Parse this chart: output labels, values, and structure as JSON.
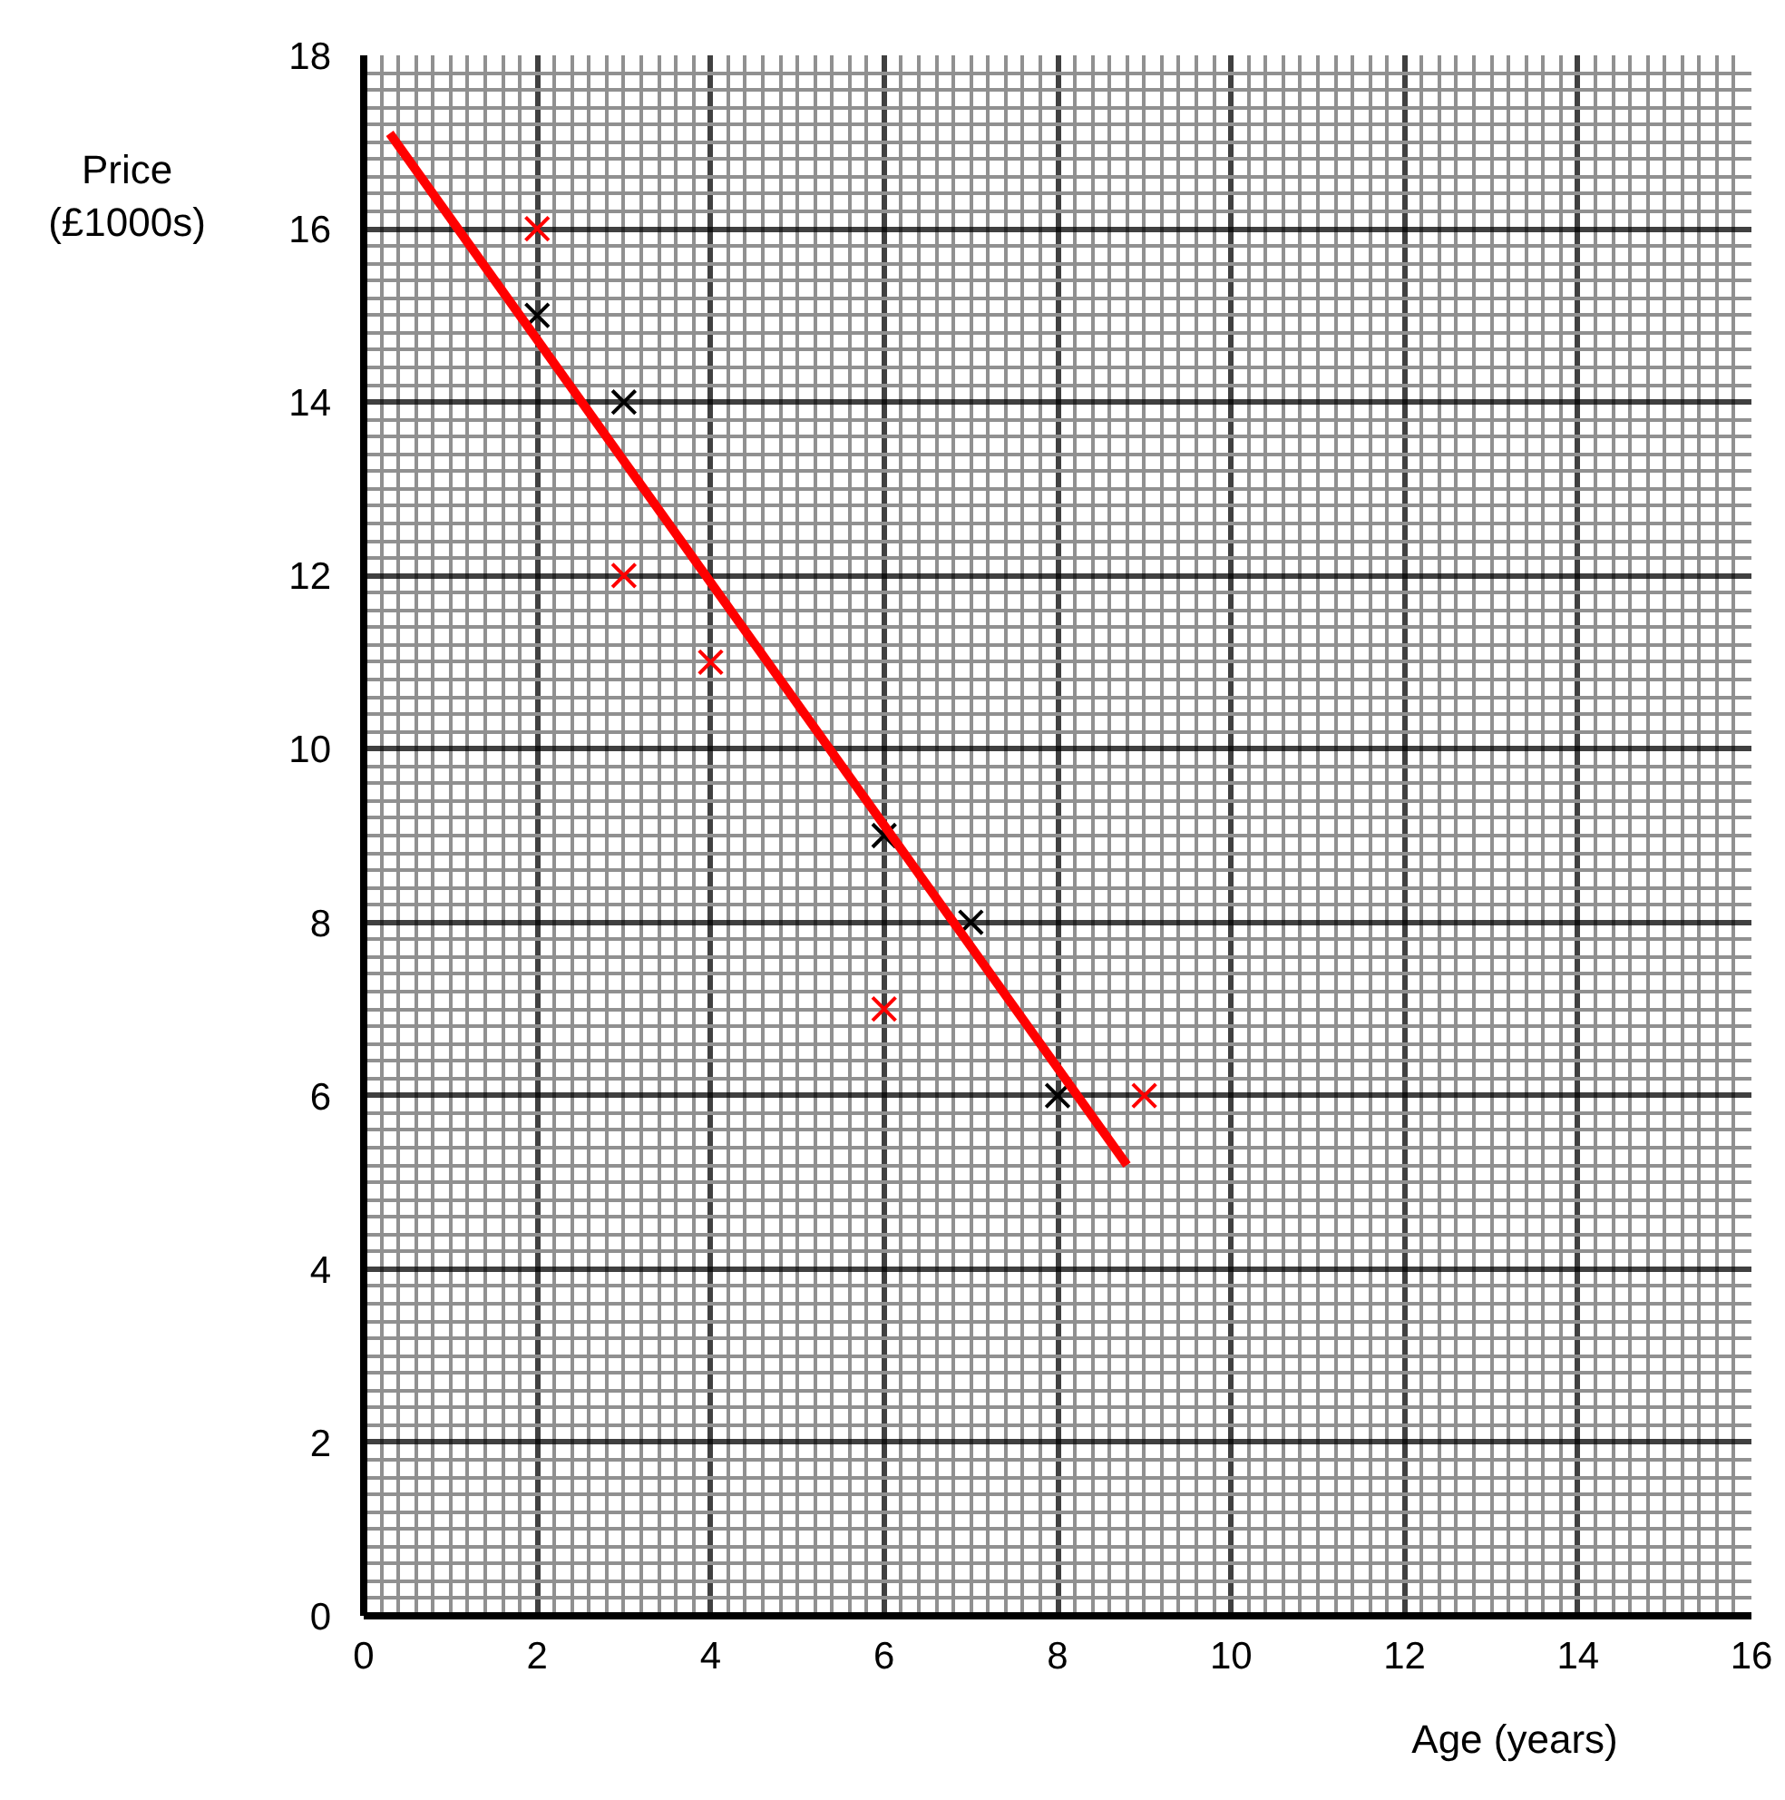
{
  "chart_data": {
    "type": "scatter",
    "xlabel": "Age (years)",
    "ylabel": "Price\n(£1000s)",
    "xlim": [
      0,
      16
    ],
    "ylim": [
      0,
      18
    ],
    "xticks": [
      0,
      2,
      4,
      6,
      8,
      10,
      12,
      14,
      16
    ],
    "yticks": [
      0,
      2,
      4,
      6,
      8,
      10,
      12,
      14,
      16,
      18
    ],
    "grid": true,
    "marker": "cross",
    "series": [
      {
        "color": "#000000",
        "x": [
          2,
          3,
          6,
          7,
          8
        ],
        "values": [
          15,
          14,
          9,
          8,
          6
        ]
      },
      {
        "color": "#ff0000",
        "x": [
          2,
          3,
          4,
          6,
          9
        ],
        "values": [
          16,
          12,
          11,
          7,
          6
        ]
      },
      {
        "type": "line",
        "color": "#ff0000",
        "marker": "none",
        "line_style": "solid",
        "x": [
          0.3,
          8.8
        ],
        "values": [
          17.1,
          5.2
        ]
      }
    ]
  }
}
